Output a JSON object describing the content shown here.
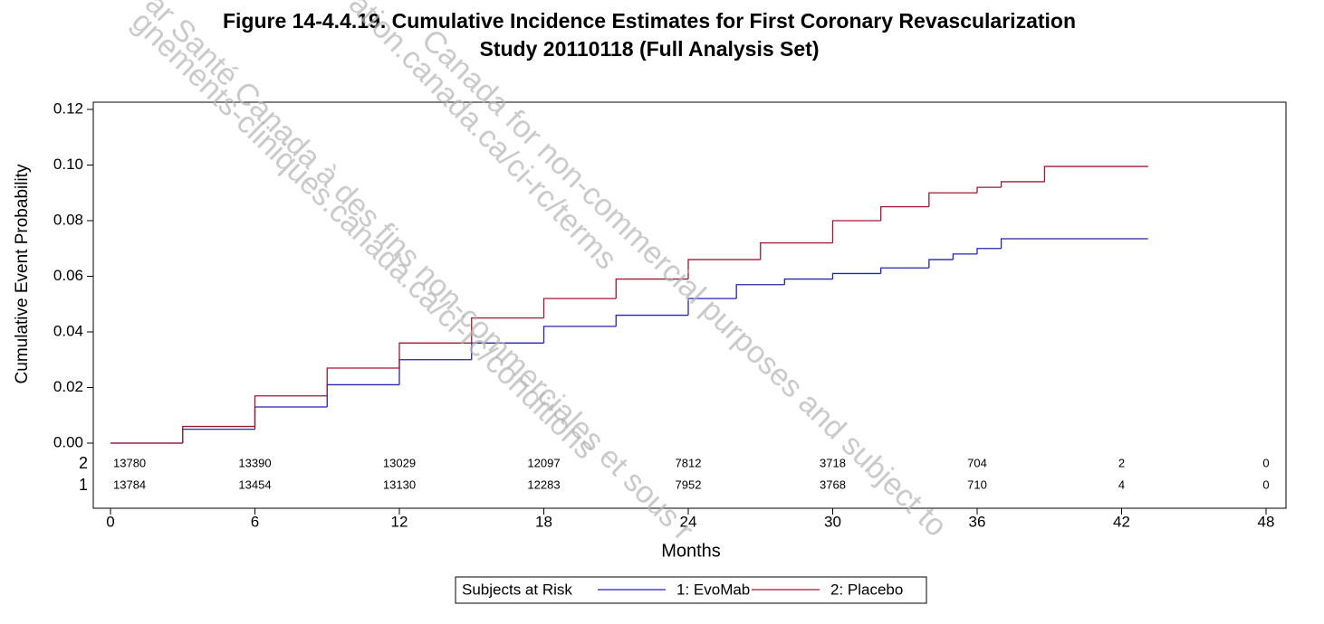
{
  "chart_data": {
    "type": "step",
    "title": "Figure 14-4.4.19.  Cumulative Incidence Estimates for First Coronary Revascularization",
    "subtitle": "Study 20110118 (Full Analysis Set)",
    "y_label": "Cumulative Event Probability",
    "x_label": "Months",
    "xlim": [
      0,
      48
    ],
    "xticks": [
      0,
      6,
      12,
      18,
      24,
      30,
      36,
      42,
      48
    ],
    "ylim": [
      0,
      0.12
    ],
    "yticks": [
      {
        "value": 0,
        "label": "0.00"
      },
      {
        "value": 0.02,
        "label": "0.02"
      },
      {
        "value": 0.04,
        "label": "0.04"
      },
      {
        "value": 0.06,
        "label": "0.06"
      },
      {
        "value": 0.08,
        "label": "0.08"
      },
      {
        "value": 0.1,
        "label": "0.10"
      },
      {
        "value": 0.12,
        "label": "0.12"
      }
    ],
    "legend_title": "Subjects at Risk",
    "legend_position": "bottom",
    "series": [
      {
        "name": "1: EvoMab",
        "color": "#2323b4",
        "risk_label": "1",
        "x": [
          0,
          3,
          6,
          9,
          12,
          15,
          18,
          21,
          24,
          26,
          28,
          30,
          32,
          34,
          35,
          36,
          37,
          43.1
        ],
        "values": [
          0,
          0.005,
          0.013,
          0.021,
          0.03,
          0.036,
          0.042,
          0.046,
          0.052,
          0.057,
          0.059,
          0.061,
          0.063,
          0.066,
          0.068,
          0.07,
          0.0735,
          0.0735
        ],
        "at_risk": [
          13784,
          13454,
          13130,
          12283,
          7952,
          3768,
          710,
          4,
          0
        ]
      },
      {
        "name": "2: Placebo",
        "color": "#a01830",
        "risk_label": "2",
        "x": [
          0,
          3,
          6,
          9,
          12,
          15,
          18,
          21,
          24,
          27,
          30,
          32,
          34,
          36,
          37,
          38.8,
          43.1
        ],
        "values": [
          0,
          0.006,
          0.017,
          0.027,
          0.036,
          0.045,
          0.052,
          0.059,
          0.066,
          0.072,
          0.08,
          0.085,
          0.09,
          0.092,
          0.094,
          0.0995,
          0.0995
        ],
        "at_risk": [
          13780,
          13390,
          13029,
          12097,
          7812,
          3718,
          704,
          2,
          0
        ]
      }
    ]
  },
  "watermark": [
    "ation.canada.ca/ci-rc/terms",
    "Canada for non-commercial purposes and subject to",
    "gnements-cliniques.canada.ca/ci-rc/conditions",
    "ar Santé Canada à des fins non-commerciales et sous r"
  ]
}
